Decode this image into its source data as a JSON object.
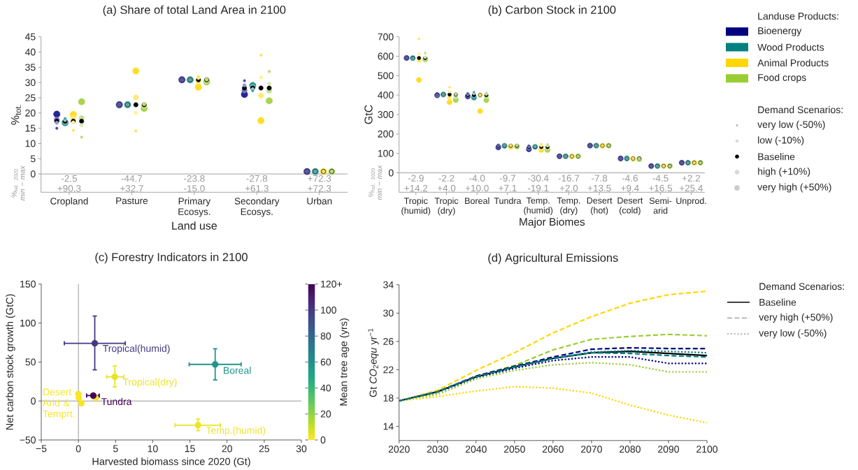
{
  "chart_data": [
    {
      "type": "bubble",
      "title": "(a) Share of total Land Area in 2100",
      "ylabel": "%$_{tot.}$",
      "xlabel": "Land use",
      "categories": [
        "Cropland",
        "Pasture",
        "Primary Ecosys.",
        "Secondary Ecosys.",
        "Urban"
      ],
      "ylim": [
        -6,
        45
      ],
      "yticks": [
        0,
        5,
        10,
        15,
        20,
        25,
        30,
        35,
        40,
        45
      ],
      "ref_lines": [
        {
          "axis": "y",
          "value": 0,
          "color": "#8c8c8c"
        }
      ],
      "annotations": [
        "%$_{rel. 2020}$ *min − max*",
        "-2.5",
        "+90.3",
        "-44.7",
        "+32.7",
        "-23.8",
        "-15.0",
        "-27.8",
        "+61.3",
        "+72.3",
        "+72.3"
      ],
      "series": [
        {
          "color": "#4d4da6",
          "values": [
            15.0,
            22.7,
            30.9,
            30.6,
            0.8
          ],
          "sizes": [
            0.16,
            0.16,
            0.16,
            0.16,
            0.16
          ]
        },
        {
          "color": "#9999cc",
          "values": [
            16.8,
            22.7,
            30.9,
            29.1,
            0.8
          ],
          "sizes": [
            0.3,
            0.3,
            0.3,
            0.3,
            0.3
          ]
        },
        {
          "color": "#000000",
          "values": [
            17.3,
            22.7,
            30.9,
            28.2,
            0.8
          ],
          "sizes": [
            0.48,
            0.48,
            0.48,
            0.48,
            0.48
          ]
        },
        {
          "color": "#7373b9",
          "values": [
            17.8,
            22.7,
            30.9,
            27.4,
            0.8
          ],
          "sizes": [
            0.68,
            0.68,
            0.68,
            0.68,
            0.68
          ]
        },
        {
          "color": "#262693",
          "values": [
            19.6,
            22.7,
            30.9,
            26.1,
            0.8
          ],
          "sizes": [
            1,
            1,
            1,
            1,
            1
          ]
        },
        {
          "color": "#4da6a6",
          "values": [
            18.2,
            22.7,
            30.9,
            27.3,
            0.8
          ],
          "sizes": [
            0.16,
            0.16,
            0.16,
            0.16,
            0.16
          ]
        },
        {
          "color": "#99cccc",
          "values": [
            17.7,
            22.7,
            30.9,
            27.8,
            0.8
          ],
          "sizes": [
            0.3,
            0.3,
            0.3,
            0.3,
            0.3
          ]
        },
        {
          "color": "#000000",
          "values": [
            17.3,
            22.7,
            30.9,
            28.2,
            0.8
          ],
          "sizes": [
            0.48,
            0.48,
            0.48,
            0.48,
            0.48
          ]
        },
        {
          "color": "#73b9b9",
          "values": [
            17.0,
            22.7,
            30.9,
            28.6,
            0.8
          ],
          "sizes": [
            0.68,
            0.68,
            0.68,
            0.68,
            0.68
          ]
        },
        {
          "color": "#269393",
          "values": [
            16.8,
            22.7,
            30.9,
            29.0,
            0.8
          ],
          "sizes": [
            1,
            1,
            1,
            1,
            1
          ]
        },
        {
          "color": "#ffe34d",
          "values": [
            14.3,
            14.1,
            31.9,
            39.0,
            0.8
          ],
          "sizes": [
            0.16,
            0.16,
            0.16,
            0.16,
            0.16
          ]
        },
        {
          "color": "#ffef99",
          "values": [
            16.9,
            20.0,
            31.5,
            31.7,
            0.8
          ],
          "sizes": [
            0.3,
            0.3,
            0.3,
            0.3,
            0.3
          ]
        },
        {
          "color": "#000000",
          "values": [
            17.3,
            22.7,
            30.9,
            28.2,
            0.8
          ],
          "sizes": [
            0.48,
            0.48,
            0.48,
            0.48,
            0.48
          ]
        },
        {
          "color": "#ffe973",
          "values": [
            18.3,
            25.1,
            30.4,
            25.7,
            0.8
          ],
          "sizes": [
            0.68,
            0.68,
            0.68,
            0.68,
            0.68
          ]
        },
        {
          "color": "#ffdd26",
          "values": [
            19.5,
            33.8,
            28.5,
            17.5,
            0.8
          ],
          "sizes": [
            1,
            1,
            1,
            1,
            1
          ]
        },
        {
          "color": "#b8dc70",
          "values": [
            12.1,
            23.0,
            31.1,
            33.6,
            0.8
          ],
          "sizes": [
            0.16,
            0.16,
            0.16,
            0.16,
            0.16
          ]
        },
        {
          "color": "#d6ebad",
          "values": [
            16.0,
            22.9,
            31.0,
            29.6,
            0.8
          ],
          "sizes": [
            0.3,
            0.3,
            0.3,
            0.3,
            0.3
          ]
        },
        {
          "color": "#000000",
          "values": [
            17.3,
            22.7,
            30.9,
            28.2,
            0.8
          ],
          "sizes": [
            0.48,
            0.48,
            0.48,
            0.48,
            0.48
          ]
        },
        {
          "color": "#c7e48e",
          "values": [
            18.3,
            22.3,
            30.6,
            27.3,
            0.8
          ],
          "sizes": [
            0.68,
            0.68,
            0.68,
            0.68,
            0.68
          ]
        },
        {
          "color": "#a9d451",
          "values": [
            23.7,
            21.5,
            30.2,
            24.0,
            0.8
          ],
          "sizes": [
            1,
            1,
            1,
            1,
            1
          ]
        }
      ]
    },
    {
      "type": "bubble",
      "title": "(b) Carbon Stock in 2100",
      "ylabel": "GtC",
      "xlabel": "Major Biomes",
      "categories": [
        "Tropic (humid)",
        "Tropic (dry)",
        "Boreal",
        "Tundra",
        "Temp. (humid)",
        "Temp. (dry)",
        "Desert (hot)",
        "Desert (cold)",
        "Semi-arid",
        "Unprod."
      ],
      "ylim": [
        -100,
        700
      ],
      "yticks": [
        0,
        100,
        200,
        300,
        400,
        500,
        600,
        700
      ],
      "ref_lines": [
        {
          "axis": "y",
          "value": 0,
          "color": "#8c8c8c"
        }
      ],
      "annotations": [
        "%$_{rel. 2020}$ *min − max*",
        "-2.9",
        "+14.2",
        "-2.2",
        "+4.0",
        "-4.0",
        "+10.0",
        "-9.7",
        "+7.1",
        "-30.4",
        "-19.1",
        "-16.7",
        "+2.0",
        "-7.8",
        "+13.5",
        "-4.6",
        "+9.4",
        "-4.5",
        "+16.5",
        "+2.2",
        "+25.4"
      ],
      "series": [
        {
          "color": "#4d4da6",
          "values": [
            591,
            400,
            409,
            143,
            139,
            85,
            140,
            74,
            35,
            52
          ],
          "sizes": [
            0.16,
            0.16,
            0.16,
            0.16,
            0.16,
            0.16,
            0.16,
            0.16,
            0.16,
            0.16
          ]
        },
        {
          "color": "#9999cc",
          "values": [
            591,
            401,
            404,
            141,
            136,
            85,
            140,
            74,
            35,
            52
          ],
          "sizes": [
            0.3,
            0.3,
            0.3,
            0.3,
            0.3,
            0.3,
            0.3,
            0.3,
            0.3,
            0.3
          ]
        },
        {
          "color": "#000000",
          "values": [
            591,
            403,
            400,
            139,
            133,
            85,
            140,
            74,
            35,
            52
          ],
          "sizes": [
            0.48,
            0.48,
            0.48,
            0.48,
            0.48,
            0.48,
            0.48,
            0.48,
            0.48,
            0.48
          ]
        },
        {
          "color": "#7373b9",
          "values": [
            591,
            400,
            397,
            136,
            127,
            85,
            140,
            74,
            35,
            52
          ],
          "sizes": [
            0.68,
            0.68,
            0.68,
            0.68,
            0.68,
            0.68,
            0.68,
            0.68,
            0.68,
            0.68
          ]
        },
        {
          "color": "#262693",
          "values": [
            591,
            399,
            393,
            131,
            121,
            85,
            140,
            74,
            35,
            52
          ],
          "sizes": [
            1,
            1,
            1,
            1,
            1,
            1,
            1,
            1,
            1,
            1
          ]
        },
        {
          "color": "#4da6a6",
          "values": [
            590,
            403,
            416,
            140,
            134,
            85,
            140,
            74,
            35,
            52
          ],
          "sizes": [
            0.16,
            0.16,
            0.16,
            0.16,
            0.16,
            0.16,
            0.16,
            0.16,
            0.16,
            0.16
          ]
        },
        {
          "color": "#99cccc",
          "values": [
            590,
            403,
            408,
            140,
            134,
            85,
            140,
            74,
            35,
            52
          ],
          "sizes": [
            0.3,
            0.3,
            0.3,
            0.3,
            0.3,
            0.3,
            0.3,
            0.3,
            0.3,
            0.3
          ]
        },
        {
          "color": "#000000",
          "values": [
            591,
            403,
            400,
            139,
            133,
            85,
            140,
            74,
            35,
            52
          ],
          "sizes": [
            0.48,
            0.48,
            0.48,
            0.48,
            0.48,
            0.48,
            0.48,
            0.48,
            0.48,
            0.48
          ]
        },
        {
          "color": "#73b9b9",
          "values": [
            590,
            403,
            395,
            139,
            134,
            85,
            140,
            74,
            35,
            52
          ],
          "sizes": [
            0.68,
            0.68,
            0.68,
            0.68,
            0.68,
            0.68,
            0.68,
            0.68,
            0.68,
            0.68
          ]
        },
        {
          "color": "#269393",
          "values": [
            590,
            403,
            387,
            139,
            134,
            85,
            140,
            74,
            35,
            52
          ],
          "sizes": [
            1,
            1,
            1,
            1,
            1,
            1,
            1,
            1,
            1,
            1
          ]
        },
        {
          "color": "#ffe34d",
          "values": [
            689,
            440,
            400,
            141,
            148,
            85,
            140,
            75,
            35,
            52
          ],
          "sizes": [
            0.16,
            0.16,
            0.16,
            0.16,
            0.16,
            0.16,
            0.16,
            0.16,
            0.16,
            0.16
          ]
        },
        {
          "color": "#ffef99",
          "values": [
            612,
            418,
            400,
            140,
            140,
            85,
            140,
            74,
            35,
            52
          ],
          "sizes": [
            0.3,
            0.3,
            0.3,
            0.3,
            0.3,
            0.3,
            0.3,
            0.3,
            0.3,
            0.3
          ]
        },
        {
          "color": "#000000",
          "values": [
            591,
            403,
            400,
            139,
            133,
            85,
            140,
            74,
            35,
            52
          ],
          "sizes": [
            0.48,
            0.48,
            0.48,
            0.48,
            0.48,
            0.48,
            0.48,
            0.48,
            0.48,
            0.48
          ]
        },
        {
          "color": "#ffe973",
          "values": [
            578,
            385,
            400,
            137,
            126,
            85,
            140,
            73,
            35,
            52
          ],
          "sizes": [
            0.68,
            0.68,
            0.68,
            0.68,
            0.68,
            0.68,
            0.68,
            0.68,
            0.68,
            0.68
          ]
        },
        {
          "color": "#ffdd26",
          "values": [
            478,
            364,
            318,
            135,
            118,
            84,
            139,
            72,
            35,
            52
          ],
          "sizes": [
            1,
            1,
            1,
            1,
            1,
            1,
            1,
            1,
            1,
            1
          ]
        },
        {
          "color": "#b8dc70",
          "values": [
            616,
            405,
            411,
            143,
            146,
            85,
            140,
            74,
            35,
            52
          ],
          "sizes": [
            0.16,
            0.16,
            0.16,
            0.16,
            0.16,
            0.16,
            0.16,
            0.16,
            0.16,
            0.16
          ]
        },
        {
          "color": "#d6ebad",
          "values": [
            595,
            404,
            405,
            141,
            139,
            85,
            140,
            73,
            35,
            52
          ],
          "sizes": [
            0.3,
            0.3,
            0.3,
            0.3,
            0.3,
            0.3,
            0.3,
            0.3,
            0.3,
            0.3
          ]
        },
        {
          "color": "#000000",
          "values": [
            591,
            403,
            400,
            139,
            133,
            85,
            140,
            74,
            35,
            52
          ],
          "sizes": [
            0.48,
            0.48,
            0.48,
            0.48,
            0.48,
            0.48,
            0.48,
            0.48,
            0.48,
            0.48
          ]
        },
        {
          "color": "#c7e48e",
          "values": [
            588,
            390,
            391,
            137,
            127,
            85,
            140,
            72,
            35,
            52
          ],
          "sizes": [
            0.68,
            0.68,
            0.68,
            0.68,
            0.68,
            0.68,
            0.68,
            0.68,
            0.68,
            0.68
          ]
        },
        {
          "color": "#a9d451",
          "values": [
            584,
            375,
            374,
            135,
            118,
            85,
            140,
            70,
            35,
            52
          ],
          "sizes": [
            1,
            1,
            1,
            1,
            1,
            1,
            1,
            1,
            1,
            1
          ]
        }
      ]
    },
    {
      "type": "other",
      "legend_title": "Landuse Products:",
      "series": [
        {
          "name": "Bioenergy",
          "color": "#000080"
        },
        {
          "name": "Wood Products",
          "color": "#008080"
        },
        {
          "name": "Animal Products",
          "color": "#ffd700"
        },
        {
          "name": "Food crops",
          "color": "#9acd32"
        }
      ]
    },
    {
      "type": "other",
      "legend_title": "Demand Scenarios:",
      "series": [
        {
          "name": "very low (-50%)",
          "color": "#c0c0c0"
        },
        {
          "name": "low (-10%)",
          "color": "#d9d9d9"
        },
        {
          "name": "Baseline",
          "color": "#000000"
        },
        {
          "name": "high (+10%)",
          "color": "#d9d9d9"
        },
        {
          "name": "very high (+50%)",
          "color": "#cccccc"
        }
      ]
    },
    {
      "type": "scatter",
      "title": "(c) Forestry Indicators in 2100",
      "xlabel": "Harvested biomass since 2020 (Gt)",
      "ylabel": "Net carbon stock growth (GtC)",
      "clabel": "Mean tree age (yrs)",
      "xlim": [
        -5,
        30
      ],
      "xticks": [
        {
          "value": -5,
          "label": "−5"
        },
        0,
        5,
        10,
        15,
        20,
        25,
        30
      ],
      "ylim": [
        -50,
        150
      ],
      "yticks": [
        {
          "value": -50,
          "label": "−50"
        },
        0,
        50,
        100,
        150
      ],
      "clim": [
        0,
        120
      ],
      "cticks": [
        0,
        20,
        40,
        60,
        80,
        100,
        {
          "value": 120,
          "label": "120+"
        }
      ],
      "ref_lines": [
        {
          "axis": "x",
          "value": 0,
          "color": "#808080"
        },
        {
          "axis": "y",
          "value": 0,
          "color": "#808080"
        }
      ],
      "series": [
        {
          "name": "Tropical(humid)",
          "x": [
            2.2
          ],
          "values": [
            74
          ],
          "xerrors": [
            [
              -1.9,
              6.3
            ]
          ],
          "errors": [
            [
              40,
              109
            ]
          ],
          "cvalues": [
            100
          ]
        },
        {
          "name": "Boreal",
          "x": [
            18.4
          ],
          "values": [
            47
          ],
          "xerrors": [
            [
              14.9,
              21.9
            ]
          ],
          "errors": [
            [
              27,
              67
            ]
          ],
          "cvalues": [
            58
          ]
        },
        {
          "name": "Tropical(dry)",
          "x": [
            4.9
          ],
          "values": [
            31
          ],
          "xerrors": [
            [
              3.8,
              6.1
            ]
          ],
          "errors": [
            [
              18,
              45
            ]
          ],
          "cvalues": [
            4
          ]
        },
        {
          "name": "Desert Arid & Temprt.",
          "x": [
            0.0,
            0.05,
            0.4,
            2.3
          ],
          "values": [
            9,
            4,
            -3,
            4
          ],
          "cvalues": [
            1,
            1,
            1,
            1
          ]
        },
        {
          "name": "Tundra",
          "x": [
            2.0
          ],
          "values": [
            7
          ],
          "xerrors": [
            [
              1.1,
              2.8
            ]
          ],
          "cvalues": [
            120
          ]
        },
        {
          "name": "Temp.(humid)",
          "x": [
            16.1
          ],
          "values": [
            -31
          ],
          "xerrors": [
            [
              13.0,
              19.1
            ]
          ],
          "errors": [
            [
              -38,
              -23
            ]
          ],
          "cvalues": [
            3
          ]
        }
      ]
    },
    {
      "type": "line",
      "title": "(d) Agricultural Emissions",
      "ylabel": "Gt *CO*$_{2}$*equ* yr$^{−1}$",
      "x": [
        2020,
        2030,
        2040,
        2050,
        2060,
        2070,
        2080,
        2090,
        2100
      ],
      "xlim": [
        2020,
        2100
      ],
      "xticks": [
        2020,
        2030,
        2040,
        2050,
        2060,
        2070,
        2080,
        2090,
        2100
      ],
      "ylim": [
        12,
        34
      ],
      "yticks": [
        14,
        18,
        22,
        26,
        30,
        34
      ],
      "series": [
        {
          "color": "#000000",
          "line_style": "solid",
          "values": [
            17.6,
            18.9,
            21.0,
            22.4,
            23.6,
            24.4,
            24.6,
            24.3,
            24.0
          ]
        },
        {
          "color": "#008080",
          "line_style": "dotted",
          "values": [
            17.6,
            18.9,
            21.0,
            22.4,
            23.6,
            24.5,
            24.7,
            24.6,
            24.4
          ]
        },
        {
          "color": "#000080",
          "line_style": "dotted",
          "values": [
            17.6,
            18.8,
            20.9,
            22.2,
            23.3,
            23.8,
            23.8,
            22.9,
            22.9
          ]
        },
        {
          "color": "#9acd32",
          "line_style": "dotted",
          "values": [
            17.6,
            18.5,
            20.7,
            21.9,
            22.7,
            23.0,
            22.7,
            21.7,
            21.7
          ]
        },
        {
          "color": "#ffd700",
          "line_style": "dotted",
          "values": [
            17.6,
            18.2,
            19.0,
            19.6,
            19.4,
            18.7,
            17.0,
            15.6,
            14.5
          ]
        },
        {
          "color": "#ffd700",
          "line_style": "dashed",
          "values": [
            17.6,
            19.1,
            21.9,
            24.4,
            27.2,
            29.5,
            31.4,
            32.6,
            33.1
          ]
        },
        {
          "color": "#9acd32",
          "line_style": "dashed",
          "values": [
            17.6,
            18.8,
            21.1,
            22.6,
            24.8,
            26.3,
            26.7,
            27.0,
            26.8
          ]
        },
        {
          "color": "#000080",
          "line_style": "dashed",
          "values": [
            17.6,
            18.9,
            21.1,
            22.5,
            23.8,
            24.9,
            25.1,
            25.0,
            25.0
          ]
        },
        {
          "color": "#008080",
          "line_style": "dashed",
          "values": [
            17.6,
            18.9,
            21.0,
            22.4,
            23.6,
            24.4,
            24.3,
            24.0,
            23.8
          ]
        }
      ]
    },
    {
      "type": "other",
      "legend_title": "Demand Scenarios:",
      "series": [
        {
          "name": "Baseline",
          "color": "#000000",
          "line_style": "solid"
        },
        {
          "name": "very high (+50%)",
          "color": "#b0b0b0",
          "line_style": "dashed"
        },
        {
          "name": "very low (-50%)",
          "color": "#b0b0b0",
          "line_style": "dotted"
        }
      ]
    }
  ]
}
